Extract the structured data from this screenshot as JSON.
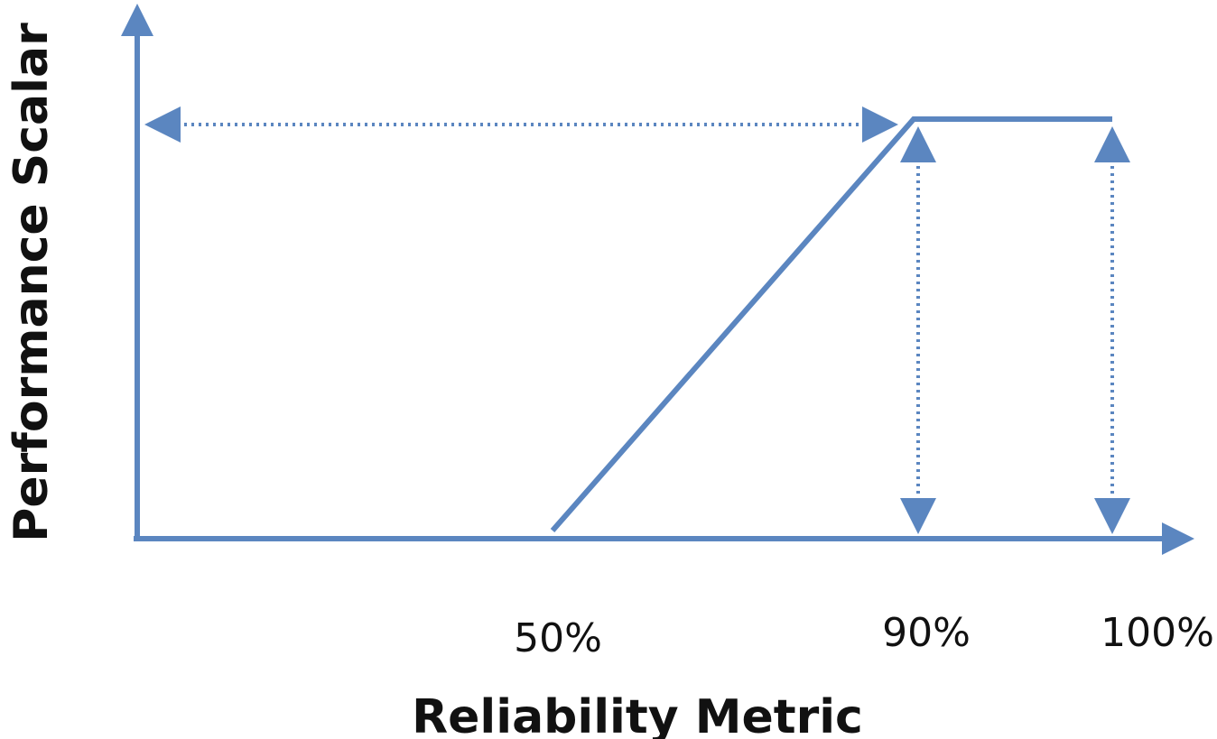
{
  "chart_data": {
    "type": "line",
    "xlabel": "Reliability Metric",
    "ylabel": "Performance Scalar",
    "x_tick_labels": [
      "50%",
      "90%",
      "100%"
    ],
    "series": [
      {
        "points": [
          {
            "x": 50,
            "y": 0
          },
          {
            "x": 90,
            "y": 1
          },
          {
            "x": 100,
            "y": 1
          }
        ]
      }
    ],
    "grid": false,
    "legend": "none",
    "colors": {
      "line": "#5b86c0",
      "axis": "#5b86c0",
      "text": "#111111"
    }
  }
}
